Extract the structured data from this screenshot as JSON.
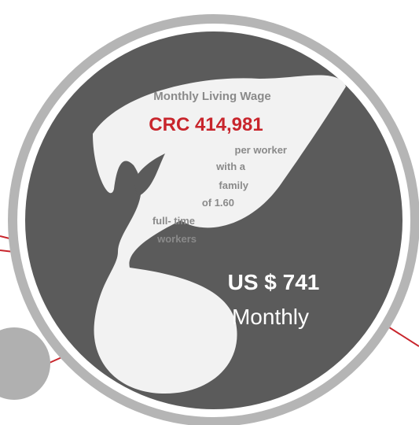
{
  "header": {
    "title": "Monthly Living Wage",
    "amount": "CRC 414,981"
  },
  "description": [
    "per worker",
    "with a",
    "family",
    "of 1.60",
    "full- time",
    "workers"
  ],
  "usd": {
    "amount": "US $ 741",
    "period": "Monthly"
  }
}
